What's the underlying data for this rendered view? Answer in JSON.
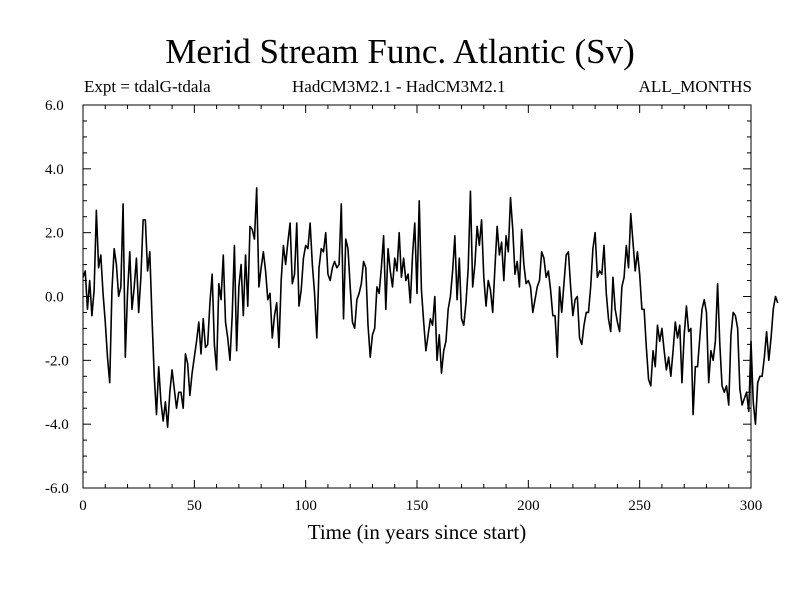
{
  "title": "Merid Stream Func. Atlantic (Sv)",
  "subtitle_left": "Expt = tdalG-tdala",
  "subtitle_center": "HadCM3M2.1 - HadCM3M2.1",
  "subtitle_right": "ALL_MONTHS",
  "chart_data": {
    "type": "line",
    "title": "Merid Stream Func. Atlantic (Sv)",
    "xlabel": "Time (in years since start)",
    "ylabel": "",
    "xlim": [
      0,
      300
    ],
    "ylim": [
      -6.0,
      6.0
    ],
    "x_ticks": [
      0,
      50,
      100,
      150,
      200,
      250,
      300
    ],
    "x_tick_labels": [
      "0",
      "50",
      "100",
      "150",
      "200",
      "250",
      "300"
    ],
    "y_ticks": [
      -6,
      -4,
      -2,
      0,
      2,
      4,
      6
    ],
    "y_tick_labels": [
      "-6.0",
      "-4.0",
      "-2.0",
      "0.0",
      "2.0",
      "4.0",
      "6.0"
    ],
    "grid": false,
    "series": [
      {
        "name": "tdalG-tdala",
        "x_start": 0,
        "x_step": 1,
        "values": [
          0.6,
          0.8,
          -0.4,
          0.5,
          -0.6,
          0.2,
          2.7,
          0.9,
          1.3,
          0.1,
          -0.8,
          -1.9,
          -2.7,
          0.2,
          1.5,
          1.0,
          0.0,
          0.3,
          2.9,
          -1.9,
          0.1,
          1.4,
          -0.4,
          0.3,
          1.2,
          -0.5,
          0.6,
          2.4,
          2.4,
          0.8,
          1.4,
          -0.7,
          -2.5,
          -3.7,
          -2.2,
          -3.3,
          -3.9,
          -3.3,
          -4.1,
          -3.0,
          -2.3,
          -2.9,
          -3.5,
          -3.0,
          -3.0,
          -3.5,
          -1.8,
          -2.1,
          -3.1,
          -2.4,
          -1.9,
          -1.4,
          -0.8,
          -1.8,
          -0.7,
          -1.6,
          -1.5,
          -0.2,
          0.7,
          -1.5,
          -2.3,
          0.4,
          -0.1,
          1.3,
          -0.8,
          -1.3,
          -2.0,
          -0.6,
          1.6,
          -1.7,
          0.3,
          1.0,
          -0.6,
          1.3,
          -0.3,
          2.2,
          2.1,
          1.8,
          3.4,
          0.3,
          0.9,
          1.4,
          0.8,
          -0.1,
          0.1,
          -1.3,
          -0.6,
          -0.2,
          -1.6,
          0.5,
          1.6,
          1.0,
          1.7,
          2.3,
          0.4,
          0.7,
          2.3,
          -0.3,
          0.2,
          1.2,
          1.6,
          1.5,
          2.3,
          1.0,
          0.1,
          -1.3,
          0.9,
          1.5,
          1.4,
          2.0,
          0.7,
          0.5,
          0.9,
          1.1,
          0.9,
          1.0,
          2.9,
          -0.7,
          1.8,
          1.5,
          0.3,
          -0.8,
          -1.0,
          -0.1,
          0.1,
          0.4,
          1.1,
          0.9,
          -0.9,
          -1.9,
          -1.2,
          -1.0,
          0.3,
          0.1,
          0.9,
          1.9,
          -0.4,
          1.5,
          0.8,
          0.3,
          1.2,
          0.8,
          2.0,
          0.6,
          1.2,
          0.5,
          0.7,
          -0.2,
          1.3,
          2.3,
          0.1,
          3.0,
          0.2,
          -0.8,
          -1.7,
          -1.2,
          -0.7,
          -0.9,
          0.0,
          -2.0,
          -1.2,
          -2.4,
          -1.7,
          -1.4,
          -0.4,
          0.0,
          0.8,
          1.9,
          -0.1,
          1.2,
          -0.7,
          -0.9,
          -0.2,
          0.9,
          3.3,
          0.3,
          1.0,
          2.2,
          1.6,
          2.4,
          0.6,
          -0.3,
          0.5,
          0.2,
          -0.5,
          0.9,
          2.2,
          1.3,
          1.7,
          0.5,
          1.9,
          1.4,
          3.1,
          2.1,
          0.7,
          1.1,
          0.3,
          2.1,
          1.0,
          0.4,
          0.5,
          0.3,
          -0.5,
          -0.1,
          0.3,
          0.5,
          1.4,
          1.2,
          0.6,
          0.8,
          0.2,
          -0.6,
          -0.6,
          -1.9,
          0.3,
          -0.5,
          0.4,
          1.3,
          1.4,
          0.3,
          -0.6,
          -0.1,
          0.0,
          -1.3,
          -1.5,
          -0.9,
          -0.5,
          -0.5,
          0.3,
          1.5,
          2.0,
          0.6,
          0.8,
          0.7,
          1.6,
          0.1,
          -0.7,
          -1.1,
          0.6,
          -0.4,
          -0.8,
          -1.1,
          0.3,
          0.6,
          1.6,
          0.9,
          2.6,
          1.7,
          0.8,
          1.4,
          0.7,
          -0.4,
          -0.4,
          -1.6,
          -2.6,
          -2.8,
          -1.7,
          -2.2,
          -0.9,
          -1.4,
          -1.0,
          -1.7,
          -2.3,
          -1.9,
          -2.5,
          -1.7,
          -0.8,
          -1.3,
          -0.9,
          -2.7,
          -1.2,
          -0.3,
          -1.1,
          -1.0,
          -3.7,
          -2.2,
          -2.2,
          -1.3,
          -0.4,
          -0.1,
          -0.5,
          -2.7,
          -1.7,
          -2.0,
          -1.4,
          0.4,
          -1.5,
          -2.8,
          -3.0,
          -2.8,
          -3.4,
          -1.2,
          -0.5,
          -0.6,
          -1.0,
          -2.9,
          -3.4,
          -3.2,
          -3.0,
          -3.6,
          -1.4,
          -3.3,
          -4.0,
          -2.7,
          -2.5,
          -2.5,
          -1.9,
          -1.1,
          -2.0,
          -1.3,
          -0.4,
          0.0,
          -0.2
        ]
      }
    ]
  }
}
